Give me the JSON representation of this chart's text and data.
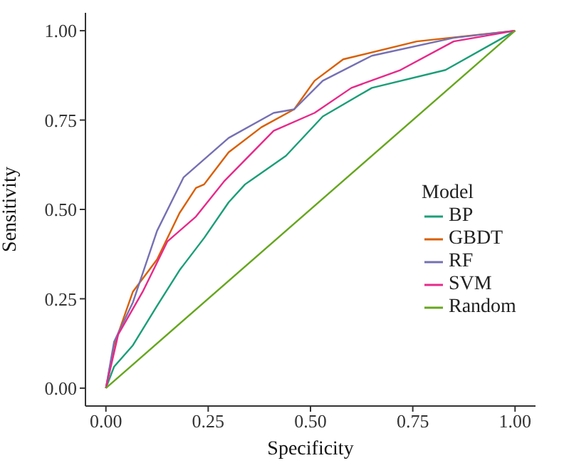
{
  "chart_data": {
    "type": "line",
    "xlabel": "Specificity",
    "ylabel": "Sensitivity",
    "legend_title": "Model",
    "legend": "right",
    "grid": false,
    "marker": "none",
    "line_style": "solid",
    "xlim": [
      -0.05,
      1.05
    ],
    "ylim": [
      -0.05,
      1.05
    ],
    "xticks": [
      {
        "value": 0,
        "label": "0.00"
      },
      {
        "value": 0.25,
        "label": "0.25"
      },
      {
        "value": 0.5,
        "label": "0.50"
      },
      {
        "value": 0.75,
        "label": "0.75"
      },
      {
        "value": 1,
        "label": "1.00"
      }
    ],
    "yticks": [
      {
        "value": 0,
        "label": "0.00"
      },
      {
        "value": 0.25,
        "label": "0.25"
      },
      {
        "value": 0.5,
        "label": "0.50"
      },
      {
        "value": 0.75,
        "label": "0.75"
      },
      {
        "value": 1,
        "label": "1.00"
      }
    ],
    "series": [
      {
        "name": "BP",
        "color": "#1b9e77",
        "x": [
          0,
          0.02,
          0.066,
          0.125,
          0.18,
          0.24,
          0.3,
          0.34,
          0.44,
          0.53,
          0.65,
          0.83,
          0.97,
          1
        ],
        "values": [
          0,
          0.06,
          0.12,
          0.23,
          0.33,
          0.42,
          0.52,
          0.57,
          0.65,
          0.76,
          0.84,
          0.89,
          0.98,
          1
        ]
      },
      {
        "name": "GBDT",
        "color": "#d95f02",
        "x": [
          0,
          0.02,
          0.066,
          0.125,
          0.18,
          0.22,
          0.24,
          0.3,
          0.38,
          0.46,
          0.51,
          0.58,
          0.76,
          1
        ],
        "values": [
          0,
          0.12,
          0.27,
          0.36,
          0.49,
          0.56,
          0.57,
          0.66,
          0.73,
          0.78,
          0.86,
          0.92,
          0.97,
          1
        ]
      },
      {
        "name": "RF",
        "color": "#7570b3",
        "x": [
          0,
          0.02,
          0.066,
          0.125,
          0.19,
          0.3,
          0.41,
          0.46,
          0.53,
          0.65,
          0.85,
          1
        ],
        "values": [
          0,
          0.13,
          0.24,
          0.44,
          0.59,
          0.7,
          0.77,
          0.78,
          0.86,
          0.93,
          0.98,
          1
        ]
      },
      {
        "name": "SVM",
        "color": "#e7298a",
        "x": [
          0,
          0.03,
          0.09,
          0.15,
          0.22,
          0.29,
          0.41,
          0.51,
          0.6,
          0.72,
          0.85,
          1
        ],
        "values": [
          0,
          0.15,
          0.27,
          0.41,
          0.48,
          0.58,
          0.72,
          0.77,
          0.84,
          0.89,
          0.97,
          1
        ]
      },
      {
        "name": "Random",
        "color": "#66a61e",
        "x": [
          0,
          1
        ],
        "values": [
          0,
          1
        ]
      }
    ]
  }
}
